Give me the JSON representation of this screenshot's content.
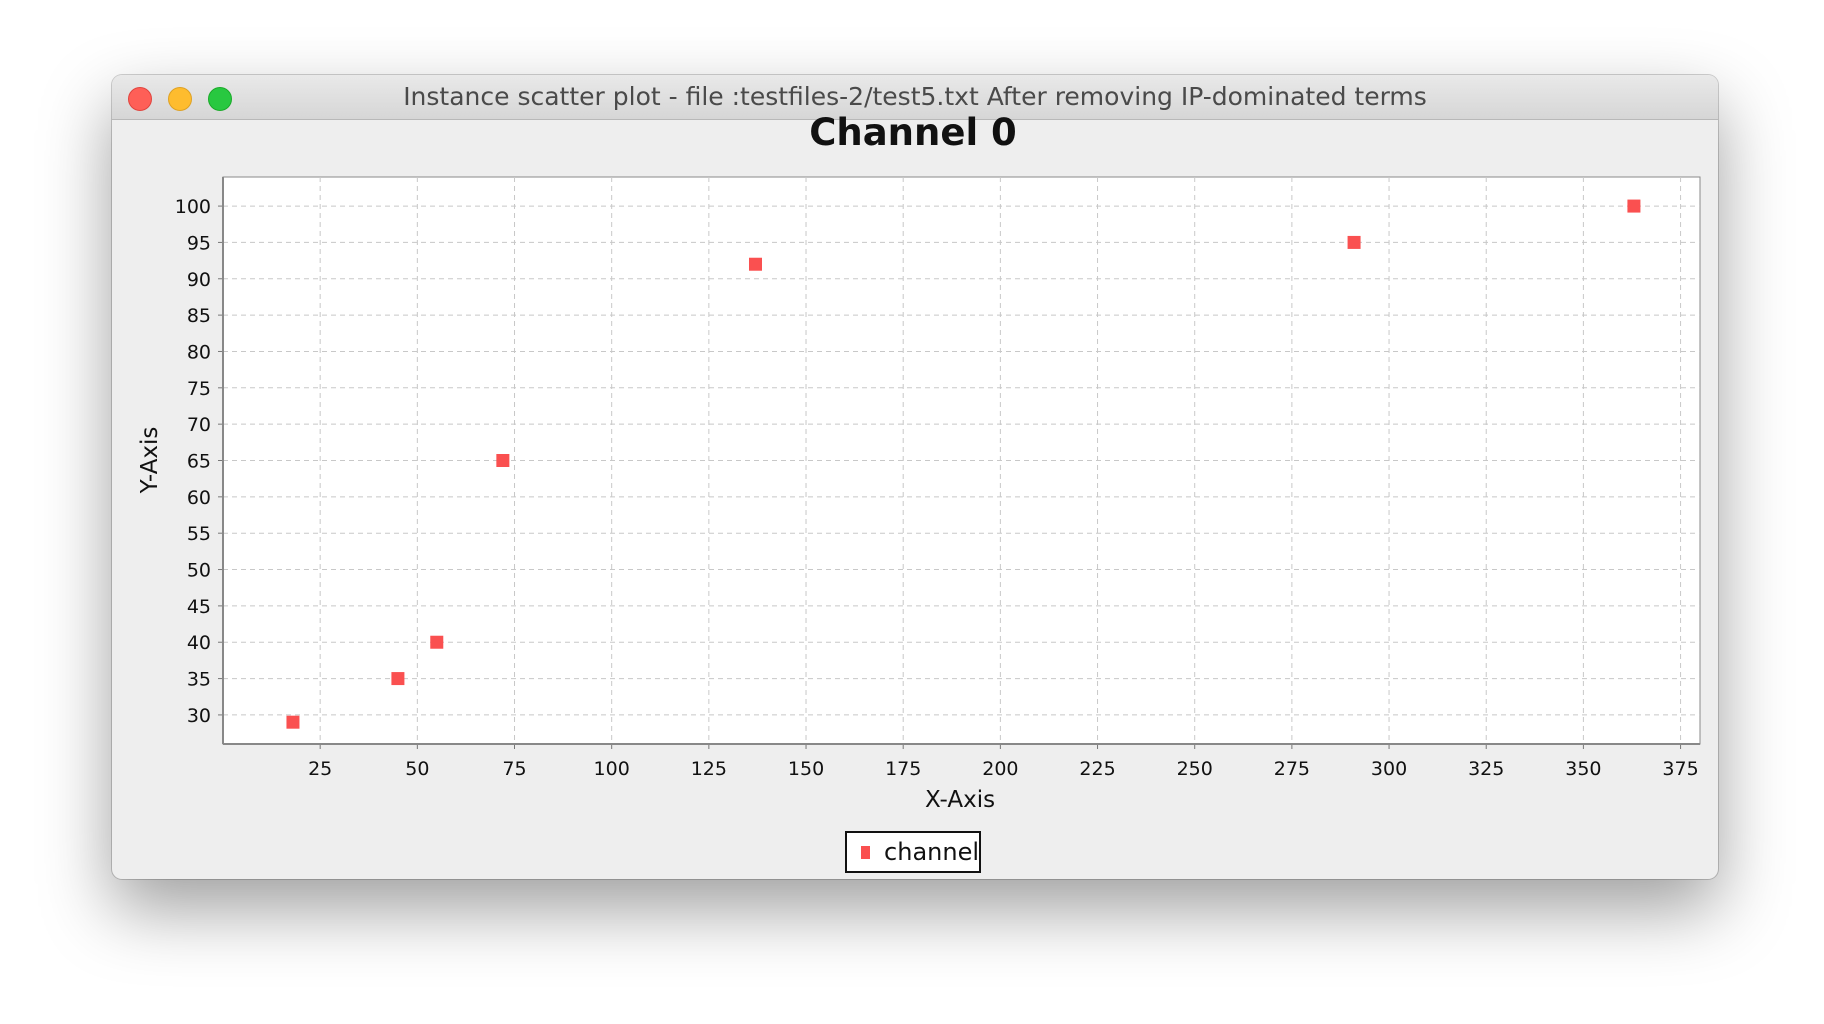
{
  "window": {
    "title": "Instance scatter plot - file :testfiles-2/test5.txt After removing IP-dominated terms"
  },
  "chart_data": {
    "type": "scatter",
    "title": "Channel 0",
    "xlabel": "X-Axis",
    "ylabel": "Y-Axis",
    "xlim": [
      0,
      380
    ],
    "ylim": [
      26,
      104
    ],
    "xticks": [
      25,
      50,
      75,
      100,
      125,
      150,
      175,
      200,
      225,
      250,
      275,
      300,
      325,
      350,
      375
    ],
    "yticks": [
      30,
      35,
      40,
      45,
      50,
      55,
      60,
      65,
      70,
      75,
      80,
      85,
      90,
      95,
      100
    ],
    "grid": true,
    "legend_position": "bottom-center",
    "series": [
      {
        "name": "channel",
        "color": "#fa5050",
        "points": [
          {
            "x": 18,
            "y": 29
          },
          {
            "x": 45,
            "y": 35
          },
          {
            "x": 55,
            "y": 40
          },
          {
            "x": 72,
            "y": 65
          },
          {
            "x": 137,
            "y": 92
          },
          {
            "x": 291,
            "y": 95
          },
          {
            "x": 363,
            "y": 100
          }
        ]
      }
    ]
  }
}
